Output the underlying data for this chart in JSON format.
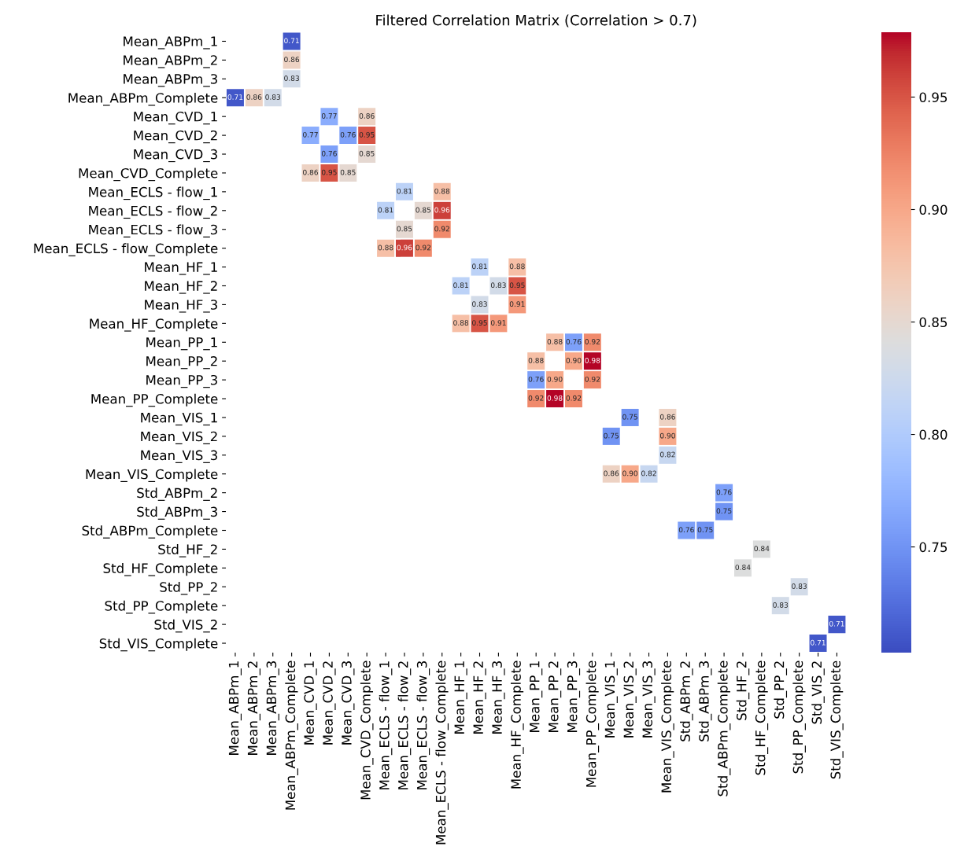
{
  "chart_data": {
    "type": "heatmap",
    "title": "Filtered Correlation Matrix (Correlation > 0.7)",
    "categories": [
      "Mean_ABPm_1",
      "Mean_ABPm_2",
      "Mean_ABPm_3",
      "Mean_ABPm_Complete",
      "Mean_CVD_1",
      "Mean_CVD_2",
      "Mean_CVD_3",
      "Mean_CVD_Complete",
      "Mean_ECLS - flow_1",
      "Mean_ECLS - flow_2",
      "Mean_ECLS - flow_3",
      "Mean_ECLS - flow_Complete",
      "Mean_HF_1",
      "Mean_HF_2",
      "Mean_HF_3",
      "Mean_HF_Complete",
      "Mean_PP_1",
      "Mean_PP_2",
      "Mean_PP_3",
      "Mean_PP_Complete",
      "Mean_VIS_1",
      "Mean_VIS_2",
      "Mean_VIS_3",
      "Mean_VIS_Complete",
      "Std_ABPm_2",
      "Std_ABPm_3",
      "Std_ABPm_Complete",
      "Std_HF_2",
      "Std_HF_Complete",
      "Std_PP_2",
      "Std_PP_Complete",
      "Std_VIS_2",
      "Std_VIS_Complete"
    ],
    "y_categories": [
      "Mean_ABPm_1",
      "Mean_ABPm_2",
      "Mean_ABPm_3",
      "Mean_ABPm_Complete",
      "Mean_CVD_1",
      "Mean_CVD_2",
      "Mean_CVD_3",
      "Mean_CVD_Complete",
      "Mean_ECLS - flow_1",
      "Mean_ECLS - flow_2",
      "Mean_ECLS - flow_3",
      "Mean_ECLS - flow_Complete",
      "Mean_HF_1",
      "Mean_HF_2",
      "Mean_HF_3",
      "Mean_HF_Complete",
      "Mean_PP_1",
      "Mean_PP_2",
      "Mean_PP_3",
      "Mean_PP_Complete",
      "Mean_VIS_1",
      "Mean_VIS_2",
      "Mean_VIS_3",
      "Mean_VIS_Complete",
      "Std_ABPm_2",
      "Std_ABPm_3",
      "Std_ABPm_Complete",
      "Std_HF_2",
      "Std_HF_Complete",
      "Std_PP_2",
      "Std_PP_Complete",
      "Std_VIS_2",
      "Std_VIS_Complete"
    ],
    "cells": [
      [
        null,
        null,
        null,
        0.71,
        null,
        null,
        null,
        null,
        null,
        null,
        null,
        null,
        null,
        null,
        null,
        null,
        null,
        null,
        null,
        null,
        null,
        null,
        null,
        null,
        null,
        null,
        null,
        null,
        null,
        null,
        null,
        null,
        null
      ],
      [
        null,
        null,
        null,
        0.86,
        null,
        null,
        null,
        null,
        null,
        null,
        null,
        null,
        null,
        null,
        null,
        null,
        null,
        null,
        null,
        null,
        null,
        null,
        null,
        null,
        null,
        null,
        null,
        null,
        null,
        null,
        null,
        null,
        null
      ],
      [
        null,
        null,
        null,
        0.83,
        null,
        null,
        null,
        null,
        null,
        null,
        null,
        null,
        null,
        null,
        null,
        null,
        null,
        null,
        null,
        null,
        null,
        null,
        null,
        null,
        null,
        null,
        null,
        null,
        null,
        null,
        null,
        null,
        null
      ],
      [
        0.71,
        0.86,
        0.83,
        null,
        null,
        null,
        null,
        null,
        null,
        null,
        null,
        null,
        null,
        null,
        null,
        null,
        null,
        null,
        null,
        null,
        null,
        null,
        null,
        null,
        null,
        null,
        null,
        null,
        null,
        null,
        null,
        null,
        null
      ],
      [
        null,
        null,
        null,
        null,
        null,
        0.77,
        null,
        0.86,
        null,
        null,
        null,
        null,
        null,
        null,
        null,
        null,
        null,
        null,
        null,
        null,
        null,
        null,
        null,
        null,
        null,
        null,
        null,
        null,
        null,
        null,
        null,
        null,
        null
      ],
      [
        null,
        null,
        null,
        null,
        0.77,
        null,
        0.76,
        0.95,
        null,
        null,
        null,
        null,
        null,
        null,
        null,
        null,
        null,
        null,
        null,
        null,
        null,
        null,
        null,
        null,
        null,
        null,
        null,
        null,
        null,
        null,
        null,
        null,
        null
      ],
      [
        null,
        null,
        null,
        null,
        null,
        0.76,
        null,
        0.85,
        null,
        null,
        null,
        null,
        null,
        null,
        null,
        null,
        null,
        null,
        null,
        null,
        null,
        null,
        null,
        null,
        null,
        null,
        null,
        null,
        null,
        null,
        null,
        null,
        null
      ],
      [
        null,
        null,
        null,
        null,
        0.86,
        0.95,
        0.85,
        null,
        null,
        null,
        null,
        null,
        null,
        null,
        null,
        null,
        null,
        null,
        null,
        null,
        null,
        null,
        null,
        null,
        null,
        null,
        null,
        null,
        null,
        null,
        null,
        null,
        null
      ],
      [
        null,
        null,
        null,
        null,
        null,
        null,
        null,
        null,
        null,
        0.81,
        null,
        0.88,
        null,
        null,
        null,
        null,
        null,
        null,
        null,
        null,
        null,
        null,
        null,
        null,
        null,
        null,
        null,
        null,
        null,
        null,
        null,
        null,
        null
      ],
      [
        null,
        null,
        null,
        null,
        null,
        null,
        null,
        null,
        0.81,
        null,
        0.85,
        0.96,
        null,
        null,
        null,
        null,
        null,
        null,
        null,
        null,
        null,
        null,
        null,
        null,
        null,
        null,
        null,
        null,
        null,
        null,
        null,
        null,
        null
      ],
      [
        null,
        null,
        null,
        null,
        null,
        null,
        null,
        null,
        null,
        0.85,
        null,
        0.92,
        null,
        null,
        null,
        null,
        null,
        null,
        null,
        null,
        null,
        null,
        null,
        null,
        null,
        null,
        null,
        null,
        null,
        null,
        null,
        null,
        null
      ],
      [
        null,
        null,
        null,
        null,
        null,
        null,
        null,
        null,
        0.88,
        0.96,
        0.92,
        null,
        null,
        null,
        null,
        null,
        null,
        null,
        null,
        null,
        null,
        null,
        null,
        null,
        null,
        null,
        null,
        null,
        null,
        null,
        null,
        null,
        null
      ],
      [
        null,
        null,
        null,
        null,
        null,
        null,
        null,
        null,
        null,
        null,
        null,
        null,
        null,
        0.81,
        null,
        0.88,
        null,
        null,
        null,
        null,
        null,
        null,
        null,
        null,
        null,
        null,
        null,
        null,
        null,
        null,
        null,
        null,
        null
      ],
      [
        null,
        null,
        null,
        null,
        null,
        null,
        null,
        null,
        null,
        null,
        null,
        null,
        0.81,
        null,
        0.83,
        0.95,
        null,
        null,
        null,
        null,
        null,
        null,
        null,
        null,
        null,
        null,
        null,
        null,
        null,
        null,
        null,
        null,
        null
      ],
      [
        null,
        null,
        null,
        null,
        null,
        null,
        null,
        null,
        null,
        null,
        null,
        null,
        null,
        0.83,
        null,
        0.91,
        null,
        null,
        null,
        null,
        null,
        null,
        null,
        null,
        null,
        null,
        null,
        null,
        null,
        null,
        null,
        null,
        null
      ],
      [
        null,
        null,
        null,
        null,
        null,
        null,
        null,
        null,
        null,
        null,
        null,
        null,
        0.88,
        0.95,
        0.91,
        null,
        null,
        null,
        null,
        null,
        null,
        null,
        null,
        null,
        null,
        null,
        null,
        null,
        null,
        null,
        null,
        null,
        null
      ],
      [
        null,
        null,
        null,
        null,
        null,
        null,
        null,
        null,
        null,
        null,
        null,
        null,
        null,
        null,
        null,
        null,
        null,
        0.88,
        0.76,
        0.92,
        null,
        null,
        null,
        null,
        null,
        null,
        null,
        null,
        null,
        null,
        null,
        null,
        null
      ],
      [
        null,
        null,
        null,
        null,
        null,
        null,
        null,
        null,
        null,
        null,
        null,
        null,
        null,
        null,
        null,
        null,
        0.88,
        null,
        0.9,
        0.98,
        null,
        null,
        null,
        null,
        null,
        null,
        null,
        null,
        null,
        null,
        null,
        null,
        null
      ],
      [
        null,
        null,
        null,
        null,
        null,
        null,
        null,
        null,
        null,
        null,
        null,
        null,
        null,
        null,
        null,
        null,
        0.76,
        0.9,
        null,
        0.92,
        null,
        null,
        null,
        null,
        null,
        null,
        null,
        null,
        null,
        null,
        null,
        null,
        null
      ],
      [
        null,
        null,
        null,
        null,
        null,
        null,
        null,
        null,
        null,
        null,
        null,
        null,
        null,
        null,
        null,
        null,
        0.92,
        0.98,
        0.92,
        null,
        null,
        null,
        null,
        null,
        null,
        null,
        null,
        null,
        null,
        null,
        null,
        null,
        null
      ],
      [
        null,
        null,
        null,
        null,
        null,
        null,
        null,
        null,
        null,
        null,
        null,
        null,
        null,
        null,
        null,
        null,
        null,
        null,
        null,
        null,
        null,
        0.75,
        null,
        0.86,
        null,
        null,
        null,
        null,
        null,
        null,
        null,
        null,
        null
      ],
      [
        null,
        null,
        null,
        null,
        null,
        null,
        null,
        null,
        null,
        null,
        null,
        null,
        null,
        null,
        null,
        null,
        null,
        null,
        null,
        null,
        0.75,
        null,
        null,
        0.9,
        null,
        null,
        null,
        null,
        null,
        null,
        null,
        null,
        null
      ],
      [
        null,
        null,
        null,
        null,
        null,
        null,
        null,
        null,
        null,
        null,
        null,
        null,
        null,
        null,
        null,
        null,
        null,
        null,
        null,
        null,
        null,
        null,
        null,
        0.82,
        null,
        null,
        null,
        null,
        null,
        null,
        null,
        null,
        null
      ],
      [
        null,
        null,
        null,
        null,
        null,
        null,
        null,
        null,
        null,
        null,
        null,
        null,
        null,
        null,
        null,
        null,
        null,
        null,
        null,
        null,
        0.86,
        0.9,
        0.82,
        null,
        null,
        null,
        null,
        null,
        null,
        null,
        null,
        null,
        null
      ],
      [
        null,
        null,
        null,
        null,
        null,
        null,
        null,
        null,
        null,
        null,
        null,
        null,
        null,
        null,
        null,
        null,
        null,
        null,
        null,
        null,
        null,
        null,
        null,
        null,
        null,
        null,
        0.76,
        null,
        null,
        null,
        null,
        null,
        null
      ],
      [
        null,
        null,
        null,
        null,
        null,
        null,
        null,
        null,
        null,
        null,
        null,
        null,
        null,
        null,
        null,
        null,
        null,
        null,
        null,
        null,
        null,
        null,
        null,
        null,
        null,
        null,
        0.75,
        null,
        null,
        null,
        null,
        null,
        null
      ],
      [
        null,
        null,
        null,
        null,
        null,
        null,
        null,
        null,
        null,
        null,
        null,
        null,
        null,
        null,
        null,
        null,
        null,
        null,
        null,
        null,
        null,
        null,
        null,
        null,
        0.76,
        0.75,
        null,
        null,
        null,
        null,
        null,
        null,
        null
      ],
      [
        null,
        null,
        null,
        null,
        null,
        null,
        null,
        null,
        null,
        null,
        null,
        null,
        null,
        null,
        null,
        null,
        null,
        null,
        null,
        null,
        null,
        null,
        null,
        null,
        null,
        null,
        null,
        null,
        0.84,
        null,
        null,
        null,
        null
      ],
      [
        null,
        null,
        null,
        null,
        null,
        null,
        null,
        null,
        null,
        null,
        null,
        null,
        null,
        null,
        null,
        null,
        null,
        null,
        null,
        null,
        null,
        null,
        null,
        null,
        null,
        null,
        null,
        0.84,
        null,
        null,
        null,
        null,
        null
      ],
      [
        null,
        null,
        null,
        null,
        null,
        null,
        null,
        null,
        null,
        null,
        null,
        null,
        null,
        null,
        null,
        null,
        null,
        null,
        null,
        null,
        null,
        null,
        null,
        null,
        null,
        null,
        null,
        null,
        null,
        null,
        0.83,
        null,
        null
      ],
      [
        null,
        null,
        null,
        null,
        null,
        null,
        null,
        null,
        null,
        null,
        null,
        null,
        null,
        null,
        null,
        null,
        null,
        null,
        null,
        null,
        null,
        null,
        null,
        null,
        null,
        null,
        null,
        null,
        null,
        0.83,
        null,
        null,
        null
      ],
      [
        null,
        null,
        null,
        null,
        null,
        null,
        null,
        null,
        null,
        null,
        null,
        null,
        null,
        null,
        null,
        null,
        null,
        null,
        null,
        null,
        null,
        null,
        null,
        null,
        null,
        null,
        null,
        null,
        null,
        null,
        null,
        null,
        0.71
      ],
      [
        null,
        null,
        null,
        null,
        null,
        null,
        null,
        null,
        null,
        null,
        null,
        null,
        null,
        null,
        null,
        null,
        null,
        null,
        null,
        null,
        null,
        null,
        null,
        null,
        null,
        null,
        null,
        null,
        null,
        null,
        null,
        0.71,
        null
      ]
    ],
    "cell_labels": [
      [
        null,
        null,
        null,
        "0.71",
        null,
        null,
        null,
        null,
        null,
        null,
        null,
        null,
        null,
        null,
        null,
        null,
        null,
        null,
        null,
        null,
        null,
        null,
        null,
        null,
        null,
        null,
        null,
        null,
        null,
        null,
        null,
        null,
        null
      ],
      [
        null,
        null,
        null,
        "0.86",
        null,
        null,
        null,
        null,
        null,
        null,
        null,
        null,
        null,
        null,
        null,
        null,
        null,
        null,
        null,
        null,
        null,
        null,
        null,
        null,
        null,
        null,
        null,
        null,
        null,
        null,
        null,
        null,
        null
      ],
      [
        null,
        null,
        null,
        "0.83",
        null,
        null,
        null,
        null,
        null,
        null,
        null,
        null,
        null,
        null,
        null,
        null,
        null,
        null,
        null,
        null,
        null,
        null,
        null,
        null,
        null,
        null,
        null,
        null,
        null,
        null,
        null,
        null,
        null
      ],
      [
        "0.71",
        "0.86",
        "0.83",
        null,
        null,
        null,
        null,
        null,
        null,
        null,
        null,
        null,
        null,
        null,
        null,
        null,
        null,
        null,
        null,
        null,
        null,
        null,
        null,
        null,
        null,
        null,
        null,
        null,
        null,
        null,
        null,
        null,
        null
      ],
      [
        null,
        null,
        null,
        null,
        null,
        "0.77",
        null,
        "0.86",
        null,
        null,
        null,
        null,
        null,
        null,
        null,
        null,
        null,
        null,
        null,
        null,
        null,
        null,
        null,
        null,
        null,
        null,
        null,
        null,
        null,
        null,
        null,
        null,
        null
      ],
      [
        null,
        null,
        null,
        null,
        "0.77",
        null,
        "0.76",
        "0.95",
        null,
        null,
        null,
        null,
        null,
        null,
        null,
        null,
        null,
        null,
        null,
        null,
        null,
        null,
        null,
        null,
        null,
        null,
        null,
        null,
        null,
        null,
        null,
        null,
        null
      ],
      [
        null,
        null,
        null,
        null,
        null,
        "0.76",
        null,
        "0.85",
        null,
        null,
        null,
        null,
        null,
        null,
        null,
        null,
        null,
        null,
        null,
        null,
        null,
        null,
        null,
        null,
        null,
        null,
        null,
        null,
        null,
        null,
        null,
        null,
        null
      ],
      [
        null,
        null,
        null,
        null,
        "0.86",
        "0.95",
        "0.85",
        null,
        null,
        null,
        null,
        null,
        null,
        null,
        null,
        null,
        null,
        null,
        null,
        null,
        null,
        null,
        null,
        null,
        null,
        null,
        null,
        null,
        null,
        null,
        null,
        null,
        null
      ],
      [
        null,
        null,
        null,
        null,
        null,
        null,
        null,
        null,
        null,
        "0.81",
        null,
        "0.88",
        null,
        null,
        null,
        null,
        null,
        null,
        null,
        null,
        null,
        null,
        null,
        null,
        null,
        null,
        null,
        null,
        null,
        null,
        null,
        null,
        null
      ],
      [
        null,
        null,
        null,
        null,
        null,
        null,
        null,
        null,
        "0.81",
        null,
        "0.85",
        "0.96",
        null,
        null,
        null,
        null,
        null,
        null,
        null,
        null,
        null,
        null,
        null,
        null,
        null,
        null,
        null,
        null,
        null,
        null,
        null,
        null,
        null
      ],
      [
        null,
        null,
        null,
        null,
        null,
        null,
        null,
        null,
        null,
        "0.85",
        null,
        "0.92",
        null,
        null,
        null,
        null,
        null,
        null,
        null,
        null,
        null,
        null,
        null,
        null,
        null,
        null,
        null,
        null,
        null,
        null,
        null,
        null,
        null
      ],
      [
        null,
        null,
        null,
        null,
        null,
        null,
        null,
        null,
        "0.88",
        "0.96",
        "0.92",
        null,
        null,
        null,
        null,
        null,
        null,
        null,
        null,
        null,
        null,
        null,
        null,
        null,
        null,
        null,
        null,
        null,
        null,
        null,
        null,
        null,
        null
      ],
      [
        null,
        null,
        null,
        null,
        null,
        null,
        null,
        null,
        null,
        null,
        null,
        null,
        null,
        "0.81",
        null,
        "0.88",
        null,
        null,
        null,
        null,
        null,
        null,
        null,
        null,
        null,
        null,
        null,
        null,
        null,
        null,
        null,
        null,
        null
      ],
      [
        null,
        null,
        null,
        null,
        null,
        null,
        null,
        null,
        null,
        null,
        null,
        null,
        "0.81",
        null,
        "0.83",
        "0.95",
        null,
        null,
        null,
        null,
        null,
        null,
        null,
        null,
        null,
        null,
        null,
        null,
        null,
        null,
        null,
        null,
        null
      ],
      [
        null,
        null,
        null,
        null,
        null,
        null,
        null,
        null,
        null,
        null,
        null,
        null,
        null,
        "0.83",
        null,
        "0.91",
        null,
        null,
        null,
        null,
        null,
        null,
        null,
        null,
        null,
        null,
        null,
        null,
        null,
        null,
        null,
        null,
        null
      ],
      [
        null,
        null,
        null,
        null,
        null,
        null,
        null,
        null,
        null,
        null,
        null,
        null,
        "0.88",
        "0.95",
        "0.91",
        null,
        null,
        null,
        null,
        null,
        null,
        null,
        null,
        null,
        null,
        null,
        null,
        null,
        null,
        null,
        null,
        null,
        null
      ],
      [
        null,
        null,
        null,
        null,
        null,
        null,
        null,
        null,
        null,
        null,
        null,
        null,
        null,
        null,
        null,
        null,
        null,
        "0.88",
        "0.76",
        "0.92",
        null,
        null,
        null,
        null,
        null,
        null,
        null,
        null,
        null,
        null,
        null,
        null,
        null
      ],
      [
        null,
        null,
        null,
        null,
        null,
        null,
        null,
        null,
        null,
        null,
        null,
        null,
        null,
        null,
        null,
        null,
        "0.88",
        null,
        "0.90",
        "0.98",
        null,
        null,
        null,
        null,
        null,
        null,
        null,
        null,
        null,
        null,
        null,
        null,
        null
      ],
      [
        null,
        null,
        null,
        null,
        null,
        null,
        null,
        null,
        null,
        null,
        null,
        null,
        null,
        null,
        null,
        null,
        "0.76",
        "0.90",
        null,
        "0.92",
        null,
        null,
        null,
        null,
        null,
        null,
        null,
        null,
        null,
        null,
        null,
        null,
        null
      ],
      [
        null,
        null,
        null,
        null,
        null,
        null,
        null,
        null,
        null,
        null,
        null,
        null,
        null,
        null,
        null,
        null,
        "0.92",
        "0.98",
        "0.92",
        null,
        null,
        null,
        null,
        null,
        null,
        null,
        null,
        null,
        null,
        null,
        null,
        null,
        null
      ],
      [
        null,
        null,
        null,
        null,
        null,
        null,
        null,
        null,
        null,
        null,
        null,
        null,
        null,
        null,
        null,
        null,
        null,
        null,
        null,
        null,
        null,
        "0.75",
        null,
        "0.86",
        null,
        null,
        null,
        null,
        null,
        null,
        null,
        null,
        null
      ],
      [
        null,
        null,
        null,
        null,
        null,
        null,
        null,
        null,
        null,
        null,
        null,
        null,
        null,
        null,
        null,
        null,
        null,
        null,
        null,
        null,
        "0.75",
        null,
        null,
        "0.90",
        null,
        null,
        null,
        null,
        null,
        null,
        null,
        null,
        null
      ],
      [
        null,
        null,
        null,
        null,
        null,
        null,
        null,
        null,
        null,
        null,
        null,
        null,
        null,
        null,
        null,
        null,
        null,
        null,
        null,
        null,
        null,
        null,
        null,
        "0.82",
        null,
        null,
        null,
        null,
        null,
        null,
        null,
        null,
        null
      ],
      [
        null,
        null,
        null,
        null,
        null,
        null,
        null,
        null,
        null,
        null,
        null,
        null,
        null,
        null,
        null,
        null,
        null,
        null,
        null,
        null,
        "0.86",
        "0.90",
        "0.82",
        null,
        null,
        null,
        null,
        null,
        null,
        null,
        null,
        null,
        null
      ],
      [
        null,
        null,
        null,
        null,
        null,
        null,
        null,
        null,
        null,
        null,
        null,
        null,
        null,
        null,
        null,
        null,
        null,
        null,
        null,
        null,
        null,
        null,
        null,
        null,
        null,
        null,
        "0.76",
        null,
        null,
        null,
        null,
        null,
        null
      ],
      [
        null,
        null,
        null,
        null,
        null,
        null,
        null,
        null,
        null,
        null,
        null,
        null,
        null,
        null,
        null,
        null,
        null,
        null,
        null,
        null,
        null,
        null,
        null,
        null,
        null,
        null,
        "0.75",
        null,
        null,
        null,
        null,
        null,
        null
      ],
      [
        null,
        null,
        null,
        null,
        null,
        null,
        null,
        null,
        null,
        null,
        null,
        null,
        null,
        null,
        null,
        null,
        null,
        null,
        null,
        null,
        null,
        null,
        null,
        null,
        "0.76",
        "0.75",
        null,
        null,
        null,
        null,
        null,
        null,
        null
      ],
      [
        null,
        null,
        null,
        null,
        null,
        null,
        null,
        null,
        null,
        null,
        null,
        null,
        null,
        null,
        null,
        null,
        null,
        null,
        null,
        null,
        null,
        null,
        null,
        null,
        null,
        null,
        null,
        null,
        "0.84",
        null,
        null,
        null,
        null
      ],
      [
        null,
        null,
        null,
        null,
        null,
        null,
        null,
        null,
        null,
        null,
        null,
        null,
        null,
        null,
        null,
        null,
        null,
        null,
        null,
        null,
        null,
        null,
        null,
        null,
        null,
        null,
        null,
        "0.84",
        null,
        null,
        null,
        null,
        null
      ],
      [
        null,
        null,
        null,
        null,
        null,
        null,
        null,
        null,
        null,
        null,
        null,
        null,
        null,
        null,
        null,
        null,
        null,
        null,
        null,
        null,
        null,
        null,
        null,
        null,
        null,
        null,
        null,
        null,
        null,
        null,
        "0.83",
        null,
        null
      ],
      [
        null,
        null,
        null,
        null,
        null,
        null,
        null,
        null,
        null,
        null,
        null,
        null,
        null,
        null,
        null,
        null,
        null,
        null,
        null,
        null,
        null,
        null,
        null,
        null,
        null,
        null,
        null,
        null,
        null,
        "0.83",
        null,
        null,
        null
      ],
      [
        null,
        null,
        null,
        null,
        null,
        null,
        null,
        null,
        null,
        null,
        null,
        null,
        null,
        null,
        null,
        null,
        null,
        null,
        null,
        null,
        null,
        null,
        null,
        null,
        null,
        null,
        null,
        null,
        null,
        null,
        null,
        null,
        "0.71"
      ],
      [
        null,
        null,
        null,
        null,
        null,
        null,
        null,
        null,
        null,
        null,
        null,
        null,
        null,
        null,
        null,
        null,
        null,
        null,
        null,
        null,
        null,
        null,
        null,
        null,
        null,
        null,
        null,
        null,
        null,
        null,
        null,
        "0.71",
        null
      ]
    ],
    "clim": [
      0.703,
      0.979
    ],
    "cticks": [
      0.75,
      {
        "value": 0.8,
        "label": "0.80"
      },
      0.85,
      {
        "value": 0.9,
        "label": "0.90"
      },
      0.95
    ],
    "data_labels": true
  }
}
